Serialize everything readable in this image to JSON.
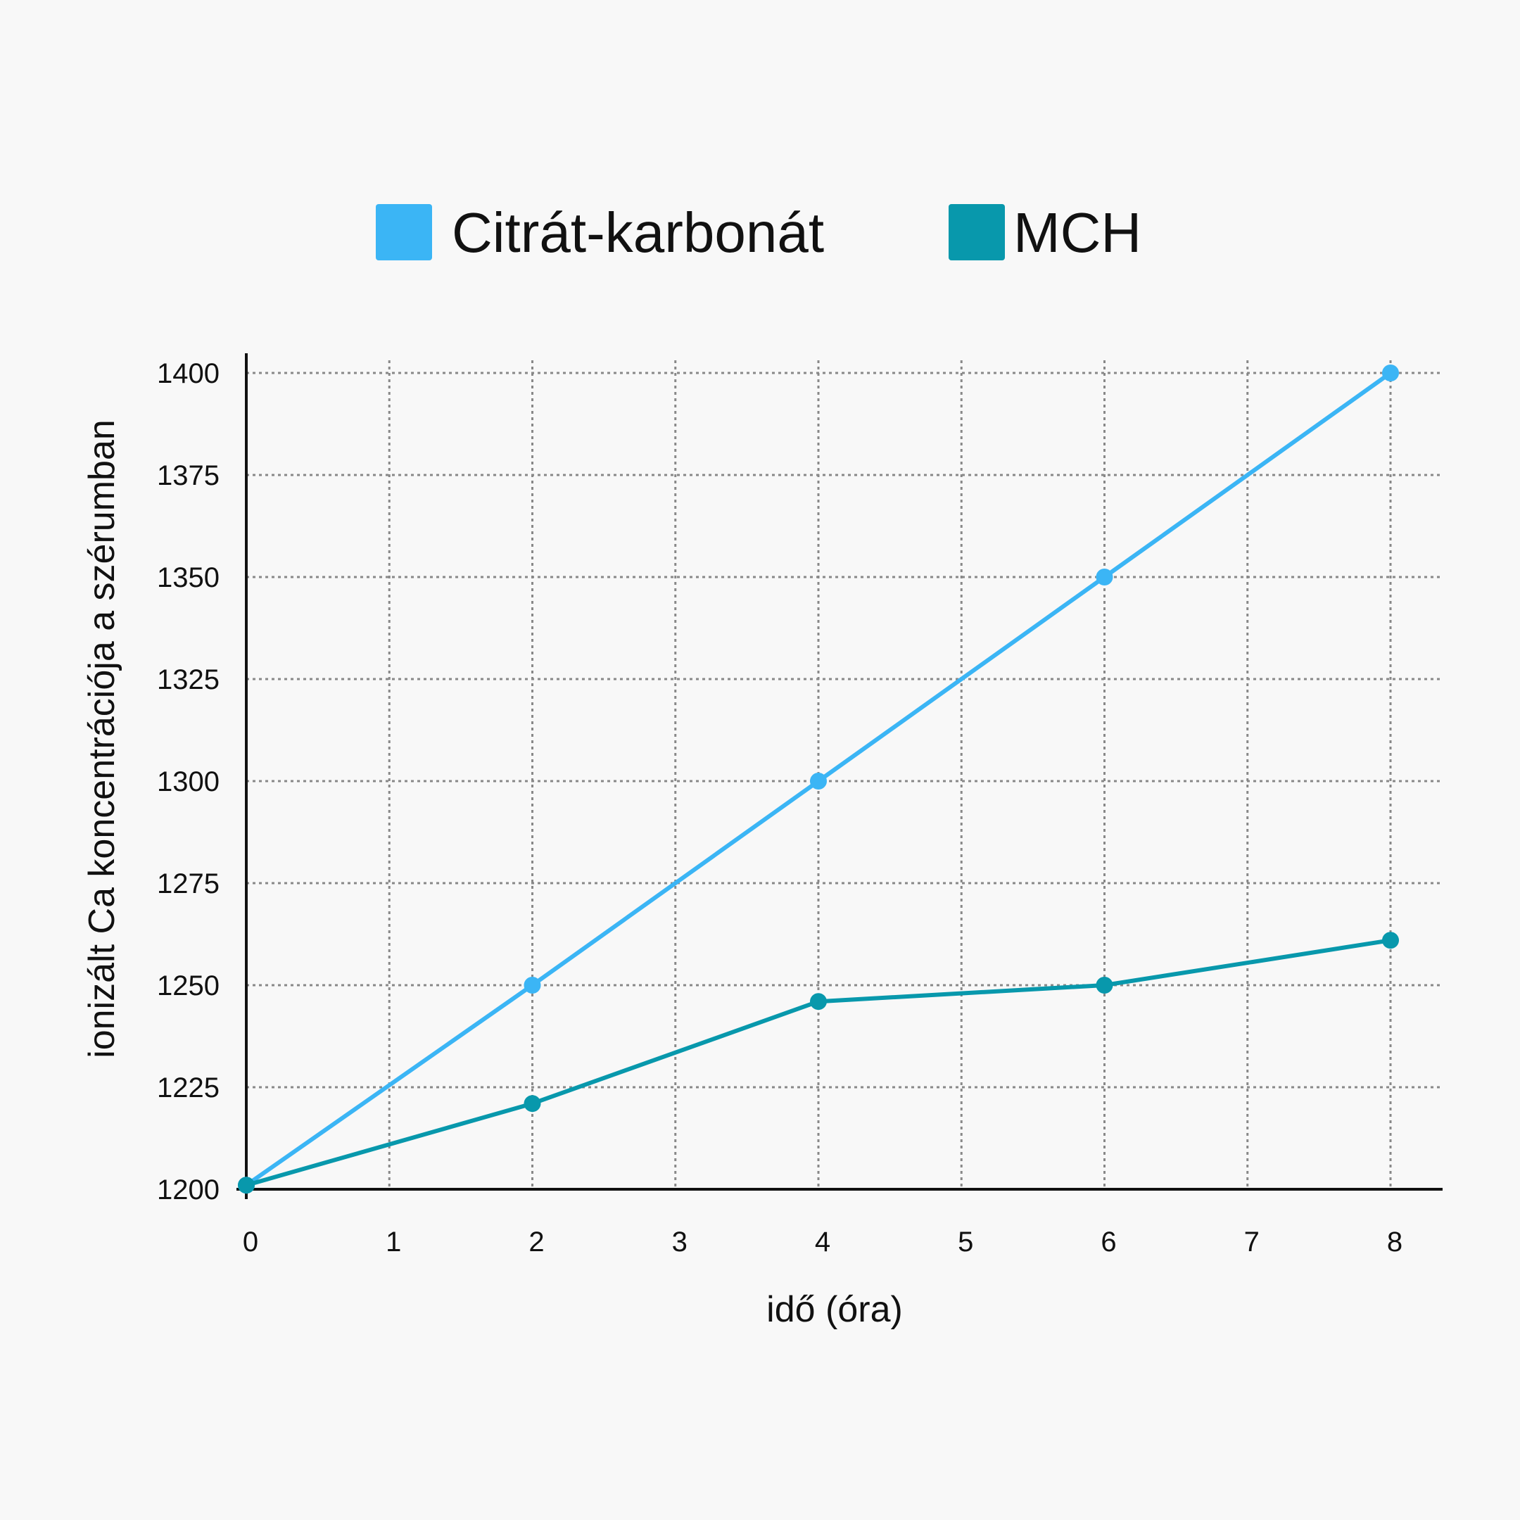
{
  "chart_data": {
    "type": "line",
    "title": "",
    "xlabel": "idő (óra)",
    "ylabel": "ionizált Ca koncentrációja a szérumban",
    "xlim": [
      0,
      8
    ],
    "ylim": [
      1200,
      1400
    ],
    "x_ticks": [
      0,
      1,
      2,
      3,
      4,
      5,
      6,
      7,
      8
    ],
    "y_ticks": [
      1200,
      1225,
      1250,
      1275,
      1300,
      1325,
      1350,
      1375,
      1400
    ],
    "grid": true,
    "legend_position": "top",
    "x": [
      0,
      2,
      4,
      6,
      8
    ],
    "series": [
      {
        "name": "Citrát-karbonát",
        "color": "#3bb5f5",
        "values": [
          1201,
          1250,
          1300,
          1350,
          1400
        ]
      },
      {
        "name": "MCH",
        "color": "#0898ac",
        "values": [
          1201,
          1221,
          1246,
          1250,
          1261
        ]
      }
    ]
  }
}
